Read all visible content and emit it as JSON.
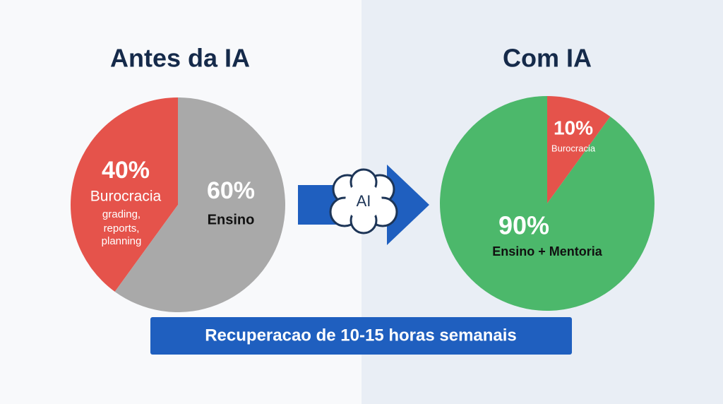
{
  "chart_data": [
    {
      "type": "pie",
      "title": "Antes da IA",
      "categories": [
        "Burocracia",
        "Ensino"
      ],
      "values": [
        40,
        60
      ],
      "value_labels": [
        "40%",
        "60%"
      ],
      "colors": [
        "#e5534b",
        "#a9a9a9"
      ],
      "start_angle": -144,
      "annotations": [
        "grading,",
        "reports,",
        "planning"
      ]
    },
    {
      "type": "pie",
      "title": "Com IA",
      "categories": [
        "Burocracia",
        "Ensino + Mentoria"
      ],
      "values": [
        10,
        90
      ],
      "value_labels": [
        "10%",
        "90%"
      ],
      "colors": [
        "#e5534b",
        "#4cb86b"
      ],
      "start_angle": 0
    }
  ],
  "icon_label": "AI",
  "banner": "Recuperacao de 10-15 horas semanais"
}
